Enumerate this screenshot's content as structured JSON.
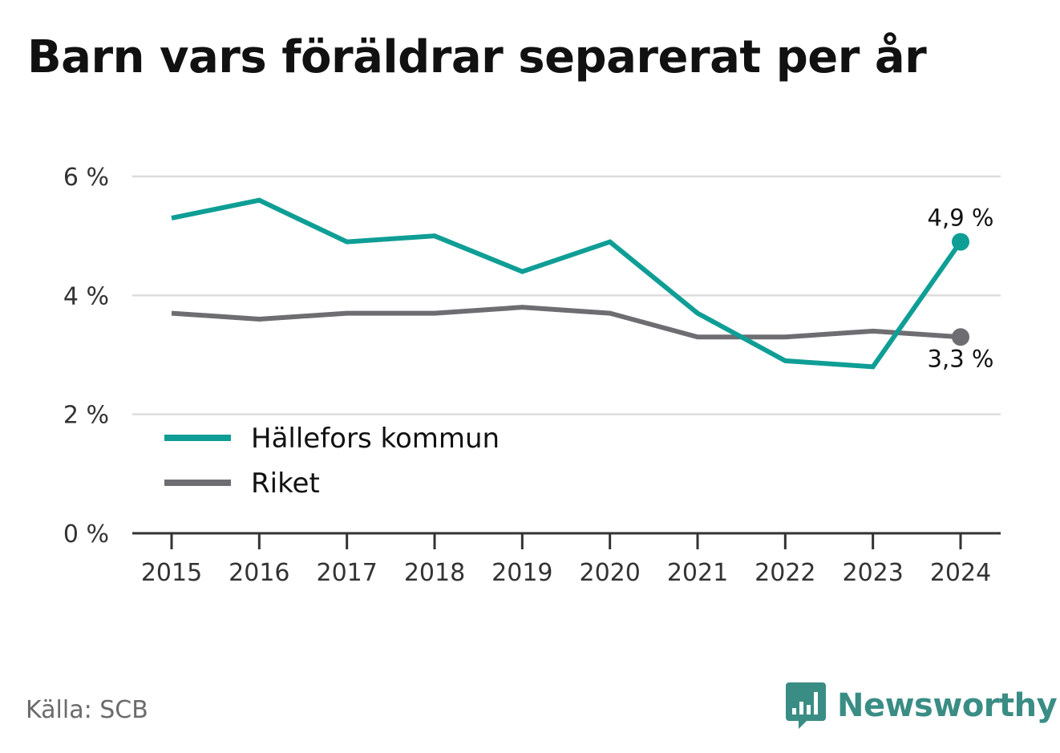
{
  "title": "Barn vars föräldrar separerat per år",
  "source": "Källa: SCB",
  "brand": {
    "name": "Newsworthy",
    "icon": "bar-chart-speech-bubble-icon",
    "color": "#3a8d85"
  },
  "chart_data": {
    "type": "line",
    "title": "Barn vars föräldrar separerat per år",
    "xlabel": "",
    "ylabel": "",
    "x": [
      "2015",
      "2016",
      "2017",
      "2018",
      "2019",
      "2020",
      "2021",
      "2022",
      "2023",
      "2024"
    ],
    "y_ticks": [
      {
        "value": 0,
        "label": "0 %"
      },
      {
        "value": 2,
        "label": "2 %"
      },
      {
        "value": 4,
        "label": "4 %"
      },
      {
        "value": 6,
        "label": "6 %"
      }
    ],
    "ylim": [
      0,
      6
    ],
    "grid": true,
    "legend_position": "bottom-left",
    "series": [
      {
        "name": "Hällefors kommun",
        "color": "#0f9e95",
        "values": [
          5.3,
          5.6,
          4.9,
          5.0,
          4.4,
          4.9,
          3.7,
          2.9,
          2.8,
          4.9
        ],
        "end_label": "4,9 %"
      },
      {
        "name": "Riket",
        "color": "#6e6d72",
        "values": [
          3.7,
          3.6,
          3.7,
          3.7,
          3.8,
          3.7,
          3.3,
          3.3,
          3.4,
          3.3
        ],
        "end_label": "3,3 %"
      }
    ]
  }
}
